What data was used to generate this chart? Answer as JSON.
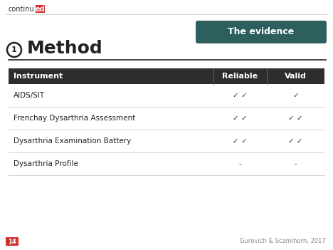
{
  "bg_color": "#ffffff",
  "logo_text_continu": "continu",
  "logo_text_ed": "ed",
  "logo_ed_bg": "#d0312d",
  "logo_ed_color": "#ffffff",
  "header_line_color": "#cccccc",
  "circle_color": "#222222",
  "number_text": "1",
  "title_text": "Method",
  "title_color": "#222222",
  "title_fontsize": 18,
  "underline_color": "#222222",
  "badge_bg": "#2d5f5f",
  "badge_text": "The evidence",
  "badge_text_color": "#ffffff",
  "badge_fontsize": 9,
  "table_header_bg": "#2d2d2d",
  "table_header_text_color": "#ffffff",
  "table_header_fontsize": 8,
  "col_instrument": "Instrument",
  "col_reliable": "Reliable",
  "col_valid": "Valid",
  "rows": [
    {
      "instrument": "AIDS/SIT",
      "reliable": "✓ ✓",
      "valid": "✓"
    },
    {
      "instrument": "Frenchay Dysarthria Assessment",
      "reliable": "✓ ✓",
      "valid": "✓ ✓"
    },
    {
      "instrument": "Dysarthria Examination Battery",
      "reliable": "✓ ✓",
      "valid": "✓ ✓"
    },
    {
      "instrument": "Dysarthria Profile",
      "reliable": "-",
      "valid": "-"
    }
  ],
  "row_divider_color": "#cccccc",
  "row_text_color": "#222222",
  "row_fontsize": 7.5,
  "check_color": "#333333",
  "footer_left_bg": "#d0312d",
  "footer_left_text": "14",
  "footer_left_color": "#ffffff",
  "footer_right_text": "Gurevich & Scamihorn, 2017",
  "footer_right_color": "#888888",
  "footer_fontsize": 6
}
